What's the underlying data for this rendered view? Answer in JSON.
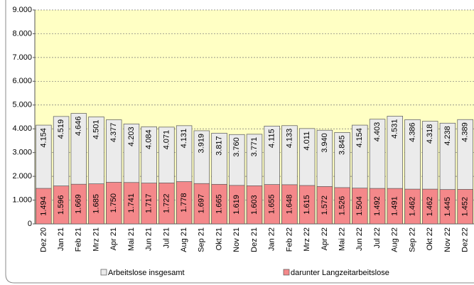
{
  "chart_data": {
    "type": "bar",
    "categories": [
      "Dez 20",
      "Jan 21",
      "Feb 21",
      "Mrz 21",
      "Apr 21",
      "Mai 21",
      "Jun 21",
      "Jul 21",
      "Aug 21",
      "Sep 21",
      "Okt 21",
      "Nov 21",
      "Dez 21",
      "Jan 22",
      "Feb 22",
      "Mrz 22",
      "Apr 22",
      "Mai 22",
      "Jun 22",
      "Jul 22",
      "Aug 22",
      "Sep 22",
      "Okt 22",
      "Nov 22",
      "Dez 22"
    ],
    "series": [
      {
        "name": "Arbeitslose insgesamt",
        "color": "#ebebeb",
        "values": [
          4154,
          4519,
          4646,
          4501,
          4377,
          4203,
          4084,
          4071,
          4131,
          3919,
          3817,
          3760,
          3771,
          4115,
          4133,
          4011,
          3940,
          3845,
          4154,
          4403,
          4531,
          4386,
          4318,
          4238,
          4389
        ],
        "value_labels": [
          "4.154",
          "4.519",
          "4.646",
          "4.501",
          "4.377",
          "4.203",
          "4.084",
          "4.071",
          "4.131",
          "3.919",
          "3.817",
          "3.760",
          "3.771",
          "4.115",
          "4.133",
          "4.011",
          "3.940",
          "3.845",
          "4.154",
          "4.403",
          "4.531",
          "4.386",
          "4.318",
          "4.238",
          "4.389"
        ]
      },
      {
        "name": "darunter Langzeitarbeitslose",
        "color": "#f4888a",
        "values": [
          1494,
          1596,
          1669,
          1685,
          1750,
          1741,
          1717,
          1722,
          1778,
          1697,
          1665,
          1619,
          1603,
          1655,
          1648,
          1615,
          1572,
          1526,
          1504,
          1492,
          1491,
          1462,
          1462,
          1445,
          1452
        ],
        "value_labels": [
          "1.494",
          "1.596",
          "1.669",
          "1.685",
          "1.750",
          "1.741",
          "1.717",
          "1.722",
          "1.778",
          "1.697",
          "1.665",
          "1.619",
          "1.603",
          "1.655",
          "1.648",
          "1.615",
          "1.572",
          "1.526",
          "1.504",
          "1.492",
          "1.491",
          "1.462",
          "1.462",
          "1.445",
          "1.452"
        ]
      }
    ],
    "ylim": [
      0,
      9000
    ],
    "yticks": [
      0,
      {
        "value": 1000,
        "label": "1.000"
      },
      {
        "value": 2000,
        "label": "2.000"
      },
      {
        "value": 3000,
        "label": "3.000"
      },
      {
        "value": 4000,
        "label": "4.000"
      },
      {
        "value": 5000,
        "label": "5.000"
      },
      {
        "value": 6000,
        "label": "6.000"
      },
      {
        "value": 7000,
        "label": "7.000"
      },
      {
        "value": 8000,
        "label": "8.000"
      },
      {
        "value": 9000,
        "label": "9.000"
      }
    ],
    "grid": true,
    "legend": "bottom"
  }
}
